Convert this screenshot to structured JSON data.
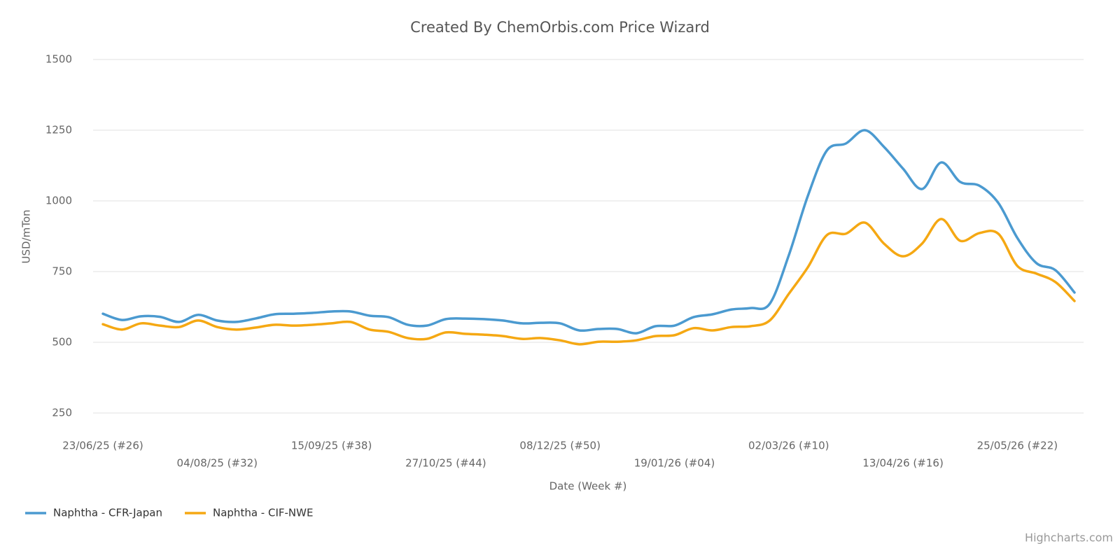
{
  "chart_data": {
    "type": "line",
    "title": "Created By ChemOrbis.com Price Wizard",
    "y_label": "USD/mTon",
    "x_label": "Date (Week #)",
    "credits": "Highcharts.com",
    "categories": [
      "23/06/25 (#26)",
      null,
      null,
      null,
      null,
      null,
      "04/08/25 (#32)",
      null,
      null,
      null,
      null,
      null,
      "15/09/25 (#38)",
      null,
      null,
      null,
      null,
      null,
      "27/10/25 (#44)",
      null,
      null,
      null,
      null,
      null,
      "08/12/25 (#50)",
      null,
      null,
      null,
      null,
      null,
      "19/01/26 (#04)",
      null,
      null,
      null,
      null,
      null,
      "02/03/26 (#10)",
      null,
      null,
      null,
      null,
      null,
      "13/04/26 (#16)",
      null,
      null,
      null,
      null,
      null,
      "25/05/26 (#22)",
      null,
      null,
      null
    ],
    "series": [
      {
        "name": "Naphtha - CFR-Japan",
        "color": "#4b9ad0",
        "values": [
          601,
          579,
          592,
          590,
          572,
          597,
          577,
          572,
          584,
          599,
          601,
          604,
          609,
          609,
          594,
          589,
          562,
          559,
          582,
          584,
          582,
          577,
          567,
          569,
          567,
          542,
          547,
          547,
          532,
          557,
          559,
          589,
          599,
          616,
          621,
          636,
          807,
          1017,
          1178,
          1203,
          1250,
          1191,
          1114,
          1042,
          1136,
          1067,
          1054,
          993,
          869,
          780,
          755,
          676
        ]
      },
      {
        "name": "Naphtha - CIF-NWE",
        "color": "#f5a813",
        "values": [
          564,
          545,
          567,
          559,
          554,
          577,
          554,
          545,
          552,
          562,
          559,
          562,
          567,
          572,
          545,
          537,
          515,
          512,
          535,
          530,
          527,
          522,
          512,
          515,
          507,
          493,
          502,
          502,
          507,
          522,
          525,
          550,
          542,
          554,
          557,
          577,
          671,
          765,
          879,
          884,
          923,
          849,
          804,
          849,
          936,
          859,
          886,
          884,
          770,
          743,
          713,
          646
        ]
      }
    ],
    "ylim": [
      250,
      1500
    ],
    "yticks": [
      250,
      500,
      750,
      1000,
      1250,
      1500
    ],
    "grid": true,
    "legend": "bottom-left"
  }
}
